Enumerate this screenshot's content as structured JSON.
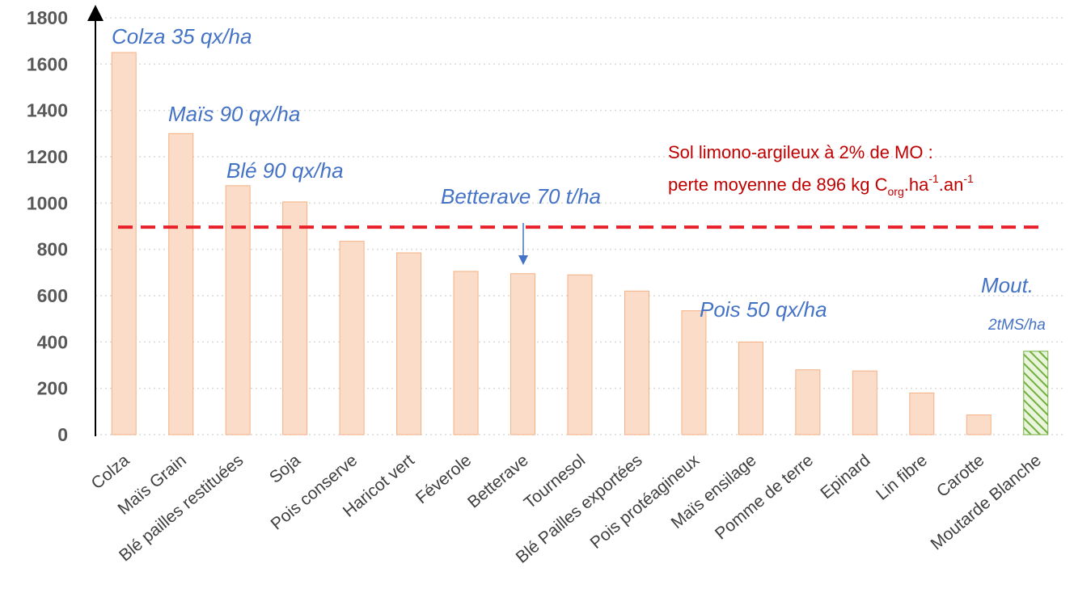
{
  "chart_data": {
    "type": "bar",
    "categories": [
      "Colza",
      "Maïs Grain",
      "Blé pailles restituées",
      "Soja",
      "Pois conserve",
      "Haricot vert",
      "Féverole",
      "Betterave",
      "Tournesol",
      "Blé Pailles exportées",
      "Pois protéagineux",
      "Maïs ensilage",
      "Pomme de terre",
      "Epinard",
      "Lin fibre",
      "Carotte",
      "Moutarde Blanche"
    ],
    "values": [
      1650,
      1300,
      1075,
      1005,
      835,
      785,
      705,
      695,
      690,
      620,
      535,
      400,
      280,
      275,
      180,
      85,
      360
    ],
    "colors": [
      "#fbdcc8",
      "#fbdcc8",
      "#fbdcc8",
      "#fbdcc8",
      "#fbdcc8",
      "#fbdcc8",
      "#fbdcc8",
      "#fbdcc8",
      "#fbdcc8",
      "#fbdcc8",
      "#fbdcc8",
      "#fbdcc8",
      "#fbdcc8",
      "#fbdcc8",
      "#fbdcc8",
      "#fbdcc8",
      "#92d050"
    ],
    "patterns": [
      "solid",
      "solid",
      "solid",
      "solid",
      "solid",
      "solid",
      "solid",
      "solid",
      "solid",
      "solid",
      "solid",
      "solid",
      "solid",
      "solid",
      "solid",
      "solid",
      "hatch"
    ],
    "ylim": [
      0,
      1800
    ],
    "yticks": [
      0,
      200,
      400,
      600,
      800,
      1000,
      1200,
      1400,
      1600,
      1800
    ],
    "grid": true,
    "threshold": {
      "value": 896,
      "color": "#e8202a"
    },
    "annotations": [
      "Colza 35 qx/ha",
      "Maïs 90 qx/ha",
      "Blé 90 qx/ha",
      "Betterave 70 t/ha",
      "Pois 50 qx/ha",
      "Mout.",
      "2tMS/ha"
    ],
    "threshold_text": {
      "line1": "Sol limono-argileux à 2% de MO :",
      "line2": [
        "perte moyenne de 896 kg C",
        "org",
        ".ha",
        "-1",
        ".an",
        "-1"
      ]
    }
  }
}
